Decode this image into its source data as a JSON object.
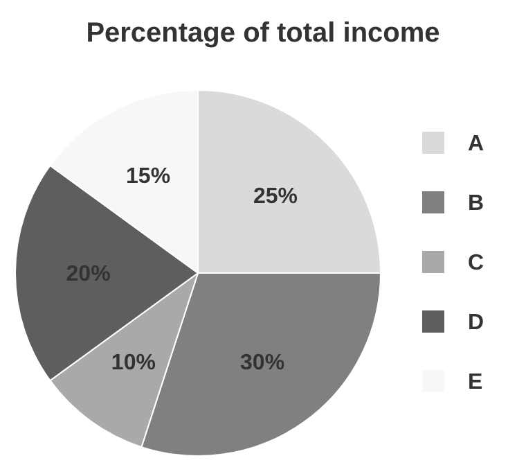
{
  "chart_data": {
    "type": "pie",
    "title": "Percentage of total income",
    "categories": [
      "A",
      "B",
      "C",
      "D",
      "E"
    ],
    "values": [
      25,
      30,
      10,
      20,
      15
    ],
    "colors": [
      "#dadada",
      "#808080",
      "#a9a9a9",
      "#5e5e5e",
      "#f7f7f7"
    ],
    "value_labels": [
      "25%",
      "30%",
      "10%",
      "20%",
      "15%"
    ],
    "legend": "right"
  }
}
